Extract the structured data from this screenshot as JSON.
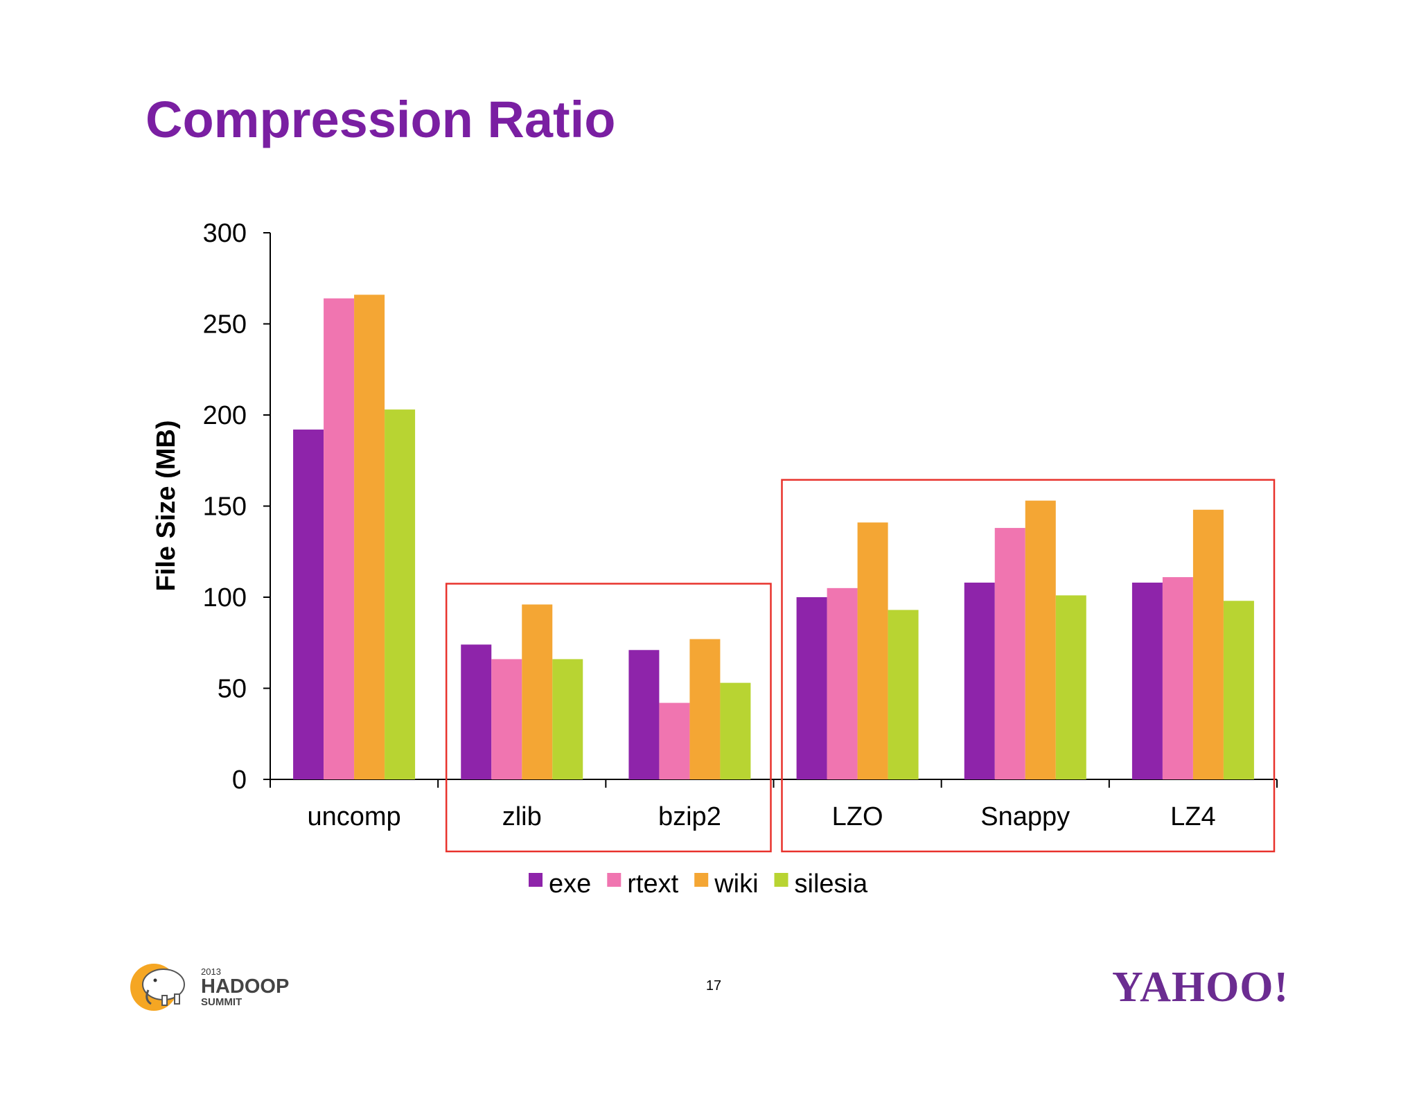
{
  "slide": {
    "title": "Compression Ratio",
    "page_number": "17",
    "hadoop_logo": {
      "year": "2013",
      "name": "HADOOP",
      "event": "SUMMIT",
      "icon": "elephant-icon"
    },
    "yahoo_logo": {
      "text": "YAHOO!"
    }
  },
  "chart_data": {
    "type": "bar",
    "title": "",
    "xlabel": "",
    "ylabel": "File Size (MB)",
    "ylim": [
      0,
      300
    ],
    "yticks": [
      0,
      50,
      100,
      150,
      200,
      250,
      300
    ],
    "categories": [
      "uncomp",
      "zlib",
      "bzip2",
      "LZO",
      "Snappy",
      "LZ4"
    ],
    "series": [
      {
        "name": "exe",
        "color": "#8e24aa",
        "values": [
          192,
          74,
          71,
          100,
          108,
          108
        ]
      },
      {
        "name": "rtext",
        "color": "#f075b0",
        "values": [
          264,
          66,
          42,
          105,
          138,
          111
        ]
      },
      {
        "name": "wiki",
        "color": "#f4a634",
        "values": [
          266,
          96,
          77,
          141,
          153,
          148
        ]
      },
      {
        "name": "silesia",
        "color": "#b8d432",
        "values": [
          203,
          66,
          53,
          93,
          101,
          98
        ]
      }
    ],
    "legend_position": "bottom-center",
    "grid": false,
    "annotations": [
      {
        "type": "highlight-box",
        "color": "#e8322c",
        "categories": [
          "zlib",
          "bzip2"
        ]
      },
      {
        "type": "highlight-box",
        "color": "#e8322c",
        "categories": [
          "LZO",
          "Snappy",
          "LZ4"
        ]
      }
    ]
  }
}
